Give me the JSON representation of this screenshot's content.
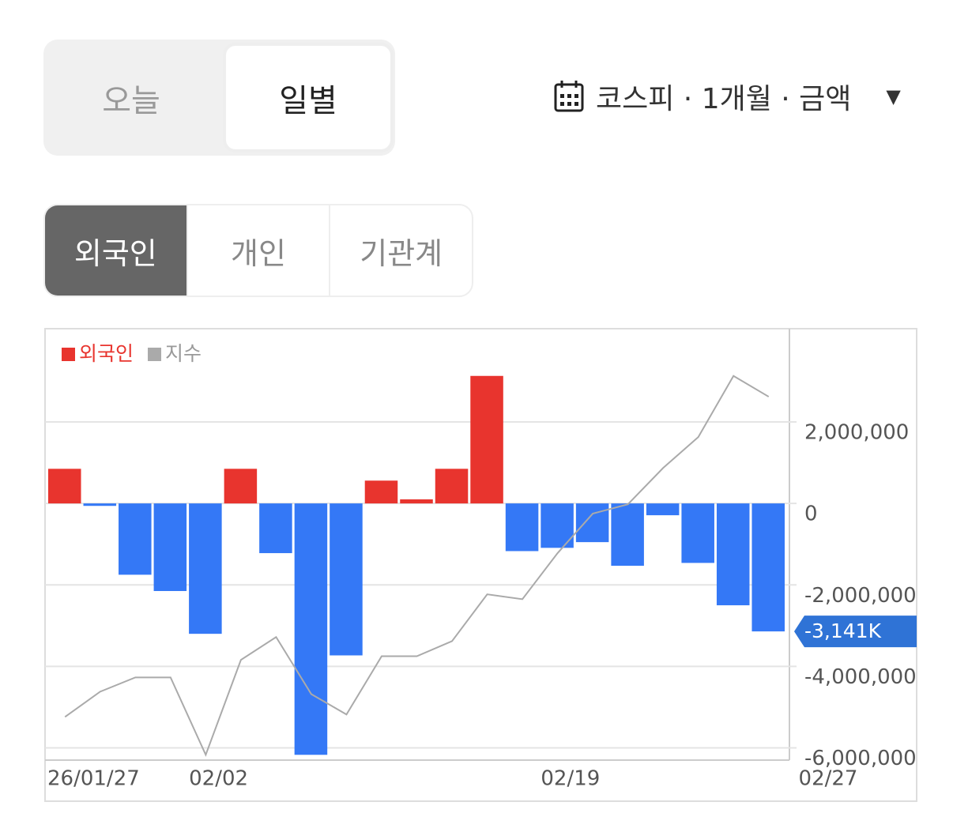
{
  "header": {
    "tabs": [
      "오늘",
      "일별"
    ],
    "selected_tab": 1,
    "filter": "코스피 · 1개월 · 금액"
  },
  "investor_tabs": {
    "items": [
      "외국인",
      "개인",
      "기관계"
    ],
    "selected": 0
  },
  "chart_data": {
    "type": "bar",
    "categories": [
      "26/01/27",
      null,
      null,
      null,
      null,
      "02/02",
      null,
      null,
      null,
      null,
      null,
      null,
      null,
      null,
      null,
      "02/19",
      null,
      null,
      null,
      null,
      "02/27"
    ],
    "series": [
      {
        "name": "외국인",
        "color": "#e8342e",
        "negative_color": "#3478f6",
        "values": [
          850000,
          -60000,
          -1750000,
          -2150000,
          -3200000,
          850000,
          -1220000,
          -6170000,
          -3730000,
          560000,
          100000,
          850000,
          3130000,
          -1170000,
          -1090000,
          -950000,
          -1530000,
          -290000,
          -1460000,
          -2500000,
          -3141000
        ],
        "value_labels": [
          null,
          null,
          null,
          null,
          null,
          null,
          null,
          null,
          null,
          null,
          null,
          null,
          null,
          null,
          null,
          null,
          null,
          null,
          null,
          null,
          "-3,141K"
        ]
      },
      {
        "name": "지수",
        "type": "line",
        "color": "#aaaaaa",
        "values": [
          -5240000,
          -4620000,
          -4270000,
          -4270000,
          -6170000,
          -3840000,
          -3280000,
          -4680000,
          -5180000,
          -3750000,
          -3750000,
          -3380000,
          -2230000,
          -2350000,
          -1220000,
          -250000,
          -20000,
          870000,
          1630000,
          3130000,
          2620000
        ]
      }
    ],
    "ylim": [
      -6300000,
      4250000
    ],
    "yticks": [
      {
        "value": -6000000,
        "label": "-6,000,000"
      },
      {
        "value": -4000000,
        "label": "-4,000,000"
      },
      {
        "value": -2000000,
        "label": "-2,000,000"
      },
      0,
      {
        "value": 2000000,
        "label": "2,000,000"
      }
    ],
    "grid": true,
    "legend": "top-left"
  }
}
